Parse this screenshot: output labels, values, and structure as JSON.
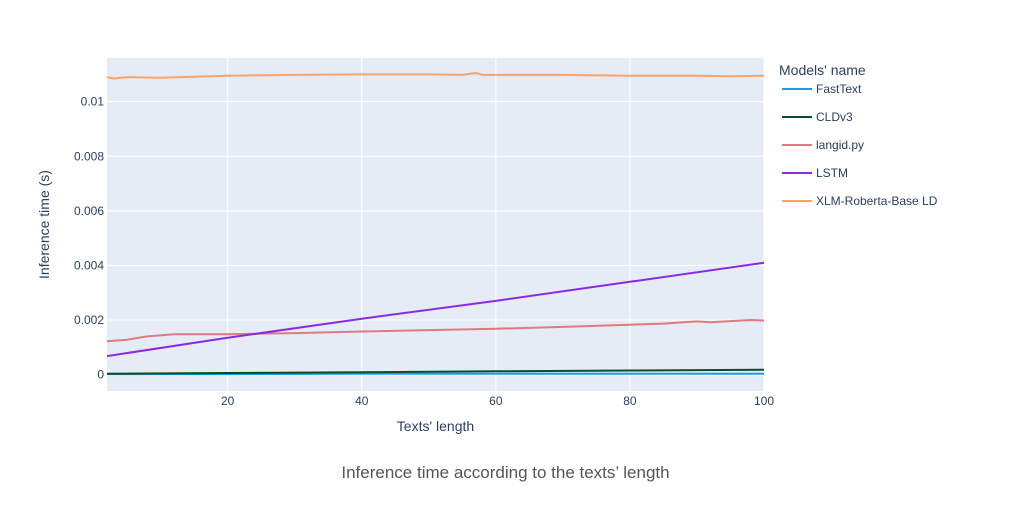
{
  "caption": "Inference time according to the texts’ length",
  "chart_data": {
    "type": "line",
    "xlabel": "Texts' length",
    "ylabel": "Inference time (s)",
    "xlim": [
      2,
      100
    ],
    "ylim": [
      -0.0006,
      0.0116
    ],
    "xticks": [
      20,
      40,
      60,
      80,
      100
    ],
    "xtick_labels": [
      "20",
      "40",
      "60",
      "80",
      "100"
    ],
    "yticks": [
      0,
      0.002,
      0.004,
      0.006,
      0.008,
      0.01
    ],
    "ytick_labels": [
      "0",
      "0.002",
      "0.004",
      "0.006",
      "0.008",
      "0.01"
    ],
    "grid": true,
    "plot_background": "#e5ecf6",
    "legend": {
      "title": "Models' name",
      "position": "right"
    },
    "series": [
      {
        "name": "FastText",
        "color": "#1f9be0",
        "x": [
          2,
          20,
          40,
          60,
          80,
          100
        ],
        "y": [
          2e-05,
          2e-05,
          3e-05,
          3e-05,
          3e-05,
          3e-05
        ]
      },
      {
        "name": "CLDv3",
        "color": "#0b4d2b",
        "x": [
          2,
          20,
          40,
          60,
          80,
          100
        ],
        "y": [
          3e-05,
          6e-05,
          9e-05,
          0.00012,
          0.00015,
          0.00018
        ]
      },
      {
        "name": "langid.py",
        "color": "#e07a80",
        "x": [
          2,
          5,
          8,
          12,
          20,
          30,
          40,
          50,
          60,
          70,
          80,
          85,
          88,
          90,
          92,
          95,
          98,
          100
        ],
        "y": [
          0.00122,
          0.00128,
          0.0014,
          0.00148,
          0.00148,
          0.00152,
          0.00158,
          0.00163,
          0.00168,
          0.00175,
          0.00183,
          0.00187,
          0.00192,
          0.00195,
          0.00192,
          0.00196,
          0.002,
          0.00198
        ]
      },
      {
        "name": "LSTM",
        "color": "#8a2be2",
        "x": [
          2,
          20,
          40,
          60,
          80,
          100
        ],
        "y": [
          0.00068,
          0.00135,
          0.00205,
          0.0027,
          0.0034,
          0.0041
        ]
      },
      {
        "name": "XLM-Roberta-Base LD",
        "color": "#f7a46b",
        "x": [
          2,
          3,
          5,
          10,
          20,
          30,
          40,
          50,
          55,
          57,
          58,
          60,
          70,
          80,
          90,
          95,
          100
        ],
        "y": [
          0.0109,
          0.01085,
          0.0109,
          0.01088,
          0.01095,
          0.01098,
          0.011,
          0.011,
          0.01098,
          0.01105,
          0.01098,
          0.01098,
          0.01098,
          0.01095,
          0.01095,
          0.01093,
          0.01095
        ]
      }
    ]
  }
}
